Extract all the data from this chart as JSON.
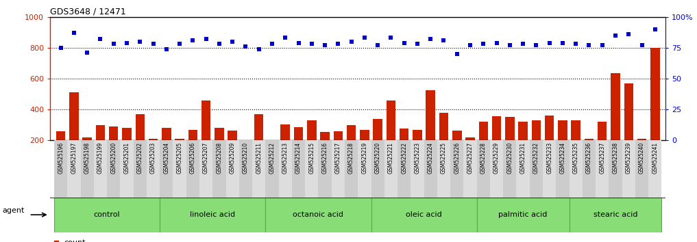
{
  "title": "GDS3648 / 12471",
  "samples": [
    "GSM525196",
    "GSM525197",
    "GSM525198",
    "GSM525199",
    "GSM525200",
    "GSM525201",
    "GSM525202",
    "GSM525203",
    "GSM525204",
    "GSM525205",
    "GSM525206",
    "GSM525207",
    "GSM525208",
    "GSM525209",
    "GSM525210",
    "GSM525211",
    "GSM525212",
    "GSM525213",
    "GSM525214",
    "GSM525215",
    "GSM525216",
    "GSM525217",
    "GSM525218",
    "GSM525219",
    "GSM525220",
    "GSM525221",
    "GSM525222",
    "GSM525223",
    "GSM525224",
    "GSM525225",
    "GSM525226",
    "GSM525227",
    "GSM525228",
    "GSM525229",
    "GSM525230",
    "GSM525231",
    "GSM525232",
    "GSM525233",
    "GSM525234",
    "GSM525235",
    "GSM525236",
    "GSM525237",
    "GSM525238",
    "GSM525239",
    "GSM525240",
    "GSM525241"
  ],
  "counts": [
    260,
    510,
    220,
    300,
    290,
    280,
    370,
    210,
    280,
    210,
    270,
    460,
    280,
    265,
    200,
    370,
    200,
    305,
    285,
    330,
    255,
    260,
    300,
    270,
    340,
    460,
    275,
    270,
    525,
    380,
    265,
    220,
    320,
    355,
    350,
    320,
    330,
    360,
    330,
    330,
    210,
    320,
    635,
    570,
    210,
    800
  ],
  "percentiles": [
    75,
    87,
    71,
    82,
    78,
    79,
    80,
    78,
    74,
    78,
    81,
    82,
    78,
    80,
    76,
    74,
    78,
    83,
    79,
    78,
    77,
    78,
    80,
    83,
    77,
    83,
    79,
    78,
    82,
    81,
    70,
    77,
    78,
    79,
    77,
    78,
    77,
    79,
    79,
    78,
    77,
    77,
    85,
    86,
    77,
    90
  ],
  "groups": [
    {
      "label": "control",
      "start": 0,
      "end": 7
    },
    {
      "label": "linoleic acid",
      "start": 8,
      "end": 15
    },
    {
      "label": "octanoic acid",
      "start": 16,
      "end": 23
    },
    {
      "label": "oleic acid",
      "start": 24,
      "end": 31
    },
    {
      "label": "palmitic acid",
      "start": 32,
      "end": 38
    },
    {
      "label": "stearic acid",
      "start": 39,
      "end": 45
    }
  ],
  "bar_color": "#cc2200",
  "scatter_color": "#0000cc",
  "group_bg_color": "#88dd77",
  "group_border_color": "#55aa44",
  "ylim_left": [
    200,
    1000
  ],
  "ylim_right": [
    0,
    100
  ],
  "yticks_left": [
    200,
    400,
    600,
    800,
    1000
  ],
  "yticks_right": [
    0,
    25,
    50,
    75,
    100
  ],
  "ytick_labels_right": [
    "0",
    "25",
    "50",
    "75",
    "100%"
  ],
  "grid_values": [
    400,
    600,
    800
  ],
  "agent_label": "agent"
}
